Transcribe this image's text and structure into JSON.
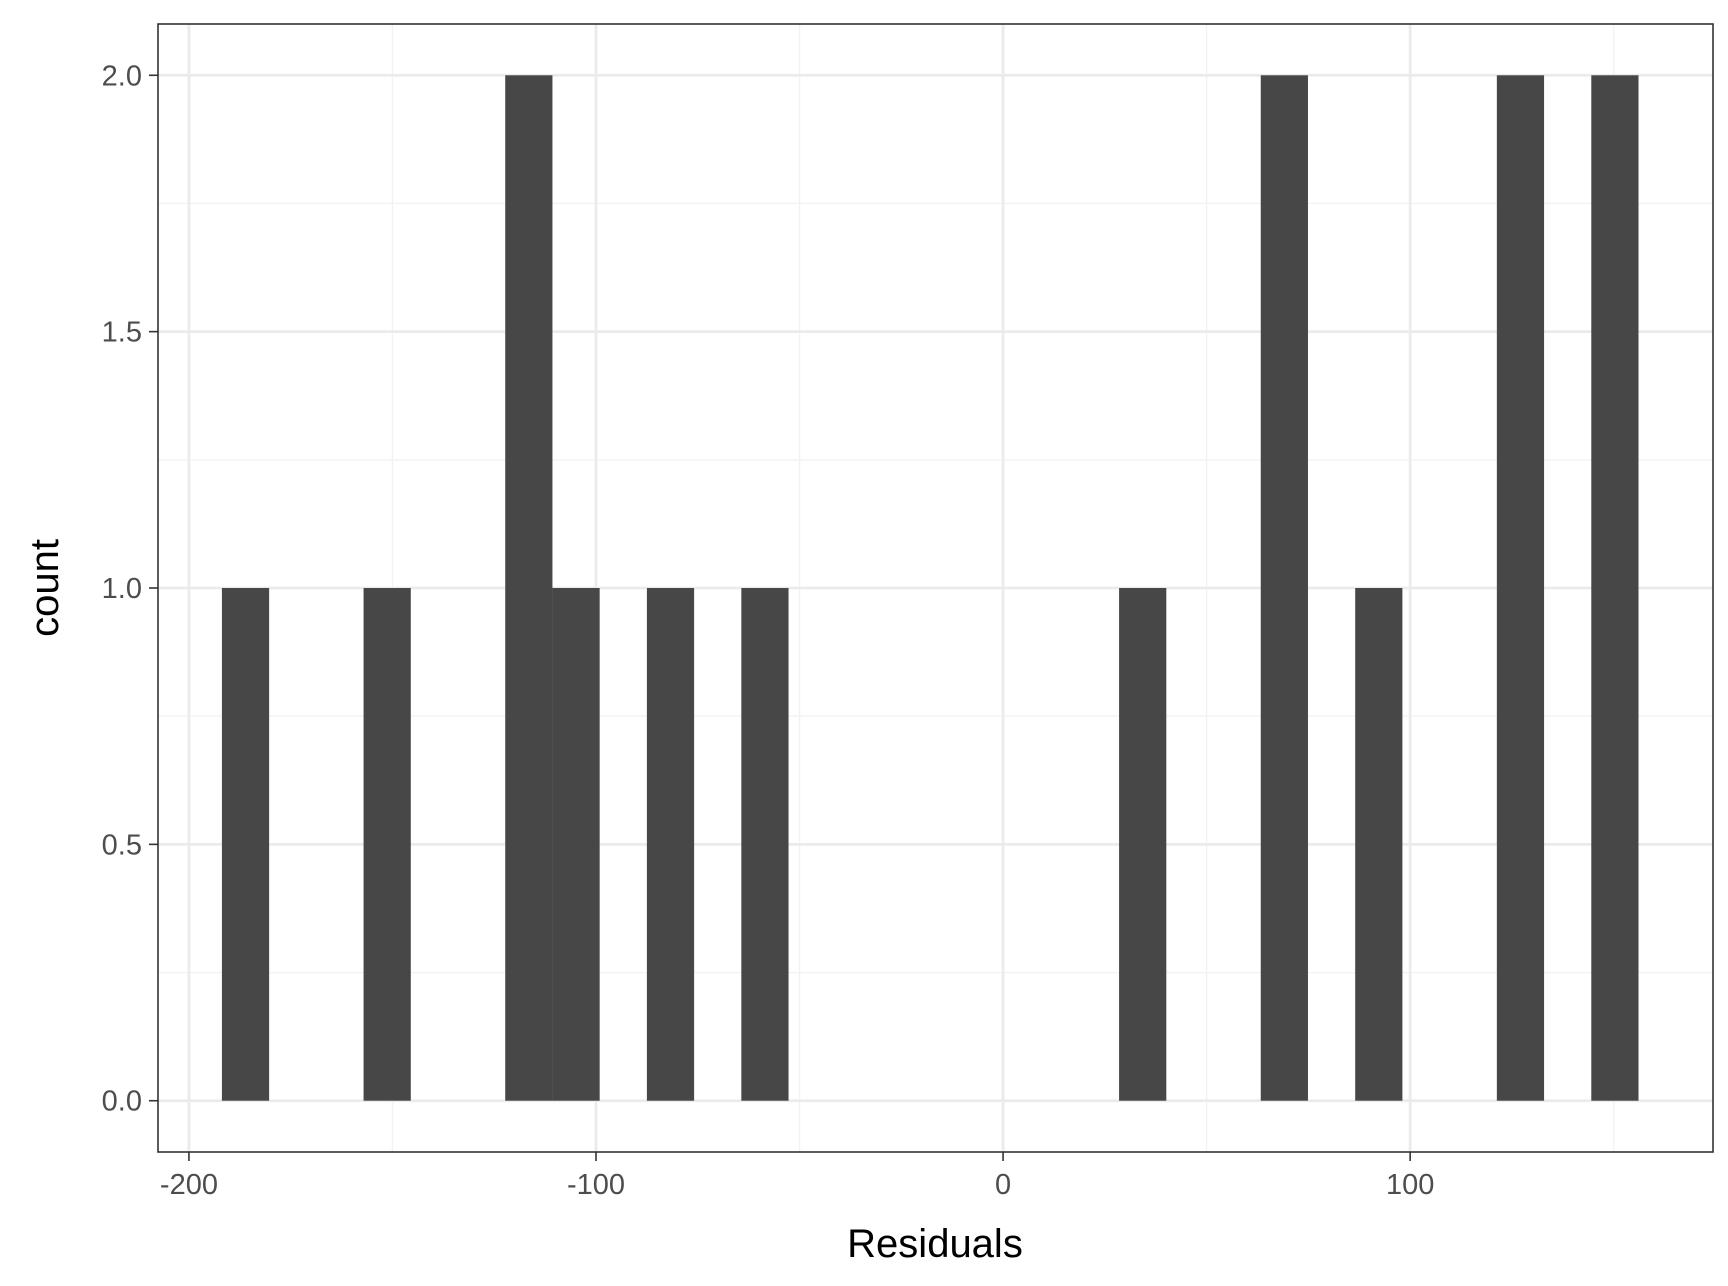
{
  "chart_data": {
    "type": "bar",
    "subtype": "histogram",
    "xlabel": "Residuals",
    "ylabel": "count",
    "xlim": [
      -207.6,
      174.4
    ],
    "ylim": [
      -0.1,
      2.1
    ],
    "x_ticks": [
      {
        "value": -200,
        "label": "-200"
      },
      {
        "value": -100,
        "label": "-100"
      },
      {
        "value": 0,
        "label": "0"
      },
      {
        "value": 100,
        "label": "100"
      }
    ],
    "y_ticks": [
      {
        "value": 0.0,
        "label": "0.0"
      },
      {
        "value": 0.5,
        "label": "0.5"
      },
      {
        "value": 1.0,
        "label": "1.0"
      },
      {
        "value": 1.5,
        "label": "1.5"
      },
      {
        "value": 2.0,
        "label": "2.0"
      }
    ],
    "bin_width": 11.6,
    "bins": [
      {
        "x0": -191.9,
        "x1": -180.3,
        "count": 1
      },
      {
        "x0": -157.1,
        "x1": -145.5,
        "count": 1
      },
      {
        "x0": -122.3,
        "x1": -110.7,
        "count": 2
      },
      {
        "x0": -110.7,
        "x1": -99.1,
        "count": 1
      },
      {
        "x0": -87.5,
        "x1": -75.9,
        "count": 1
      },
      {
        "x0": -64.3,
        "x1": -52.7,
        "count": 1
      },
      {
        "x0": 28.5,
        "x1": 40.1,
        "count": 1
      },
      {
        "x0": 63.3,
        "x1": 74.9,
        "count": 2
      },
      {
        "x0": 86.5,
        "x1": 98.1,
        "count": 1
      },
      {
        "x0": 121.3,
        "x1": 132.9,
        "count": 2
      },
      {
        "x0": 144.5,
        "x1": 156.1,
        "count": 2
      }
    ],
    "grid": true,
    "colors": {
      "bar": "#474747",
      "grid_major": "#ebebeb",
      "grid_minor": "#f2f2f2",
      "panel_border": "#333333",
      "tick_label": "#4d4d4d",
      "axis_title": "#000000"
    }
  }
}
